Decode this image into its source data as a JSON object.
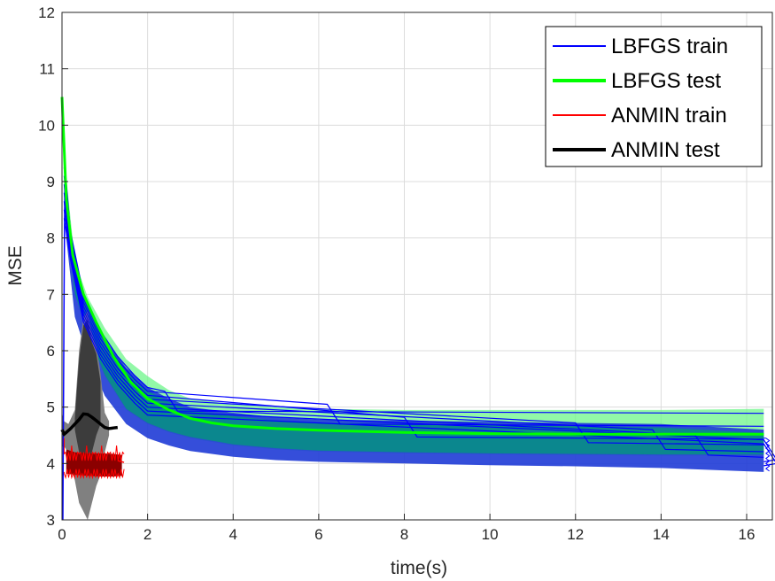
{
  "chart_data": {
    "type": "line",
    "title": "",
    "xlabel": "time(s)",
    "ylabel": "MSE",
    "xlim": [
      0,
      16.6
    ],
    "ylim": [
      3,
      12
    ],
    "xticks": [
      0,
      2,
      4,
      6,
      8,
      10,
      12,
      14,
      16
    ],
    "yticks": [
      3,
      4,
      5,
      6,
      7,
      8,
      9,
      10,
      11,
      12
    ],
    "grid": true,
    "legend_position": "top-right",
    "legend": [
      {
        "label": "LBFGS train",
        "color": "#0000ff"
      },
      {
        "label": "LBFGS test",
        "color": "#00ff00"
      },
      {
        "label": "ANMIN train",
        "color": "#ff0000"
      },
      {
        "label": "ANMIN test",
        "color": "#000000"
      }
    ],
    "series": [
      {
        "name": "LBFGS test (mean)",
        "color": "#00ff00",
        "x": [
          0,
          0.1,
          0.25,
          0.5,
          0.8,
          1.2,
          1.6,
          2.0,
          2.5,
          3.0,
          3.5,
          4.0,
          5.0,
          6.0,
          8.0,
          10.0,
          12.0,
          14.0,
          16.4
        ],
        "y": [
          10.5,
          8.7,
          7.7,
          7.0,
          6.5,
          5.9,
          5.45,
          5.15,
          4.95,
          4.8,
          4.72,
          4.67,
          4.62,
          4.59,
          4.55,
          4.53,
          4.52,
          4.52,
          4.52
        ]
      },
      {
        "name": "LBFGS test (band)",
        "color": "#66ee88",
        "x": [
          0.1,
          0.3,
          0.6,
          1.0,
          1.5,
          2.0,
          2.5,
          3.0,
          4.0,
          5.0,
          6.0,
          8.0,
          10.0,
          12.0,
          14.0,
          16.4
        ],
        "upper": [
          9.1,
          7.6,
          6.95,
          6.4,
          5.85,
          5.55,
          5.3,
          5.15,
          5.05,
          5.0,
          4.97,
          4.95,
          4.95,
          4.95,
          4.95,
          4.97
        ],
        "lower": [
          8.3,
          7.0,
          6.3,
          5.55,
          4.95,
          4.7,
          4.55,
          4.45,
          4.32,
          4.25,
          4.21,
          4.18,
          4.16,
          4.15,
          4.14,
          4.14
        ]
      },
      {
        "name": "LBFGS train (envelope)",
        "color": "#0000ff",
        "x": [
          0.1,
          0.3,
          0.6,
          1.0,
          1.5,
          2.0,
          2.5,
          3.0,
          4.0,
          5.0,
          6.0,
          8.0,
          10.0,
          12.0,
          14.0,
          16.4
        ],
        "upper": [
          8.8,
          7.4,
          6.8,
          6.2,
          5.7,
          5.35,
          5.15,
          5.0,
          4.9,
          4.82,
          4.78,
          4.76,
          4.74,
          4.72,
          4.7,
          4.6
        ],
        "lower": [
          8.0,
          6.6,
          5.9,
          5.2,
          4.7,
          4.45,
          4.32,
          4.22,
          4.12,
          4.06,
          4.03,
          4.0,
          3.97,
          3.95,
          3.92,
          3.85
        ]
      },
      {
        "name": "ANMIN test (mean)",
        "color": "#000000",
        "x": [
          0,
          0.05,
          0.1,
          0.2,
          0.3,
          0.4,
          0.5,
          0.6,
          0.7,
          0.8,
          0.9,
          1.0,
          1.1,
          1.2,
          1.3
        ],
        "y": [
          4.6,
          4.52,
          4.55,
          4.62,
          4.7,
          4.78,
          4.88,
          4.87,
          4.82,
          4.76,
          4.7,
          4.64,
          4.62,
          4.63,
          4.64
        ]
      },
      {
        "name": "ANMIN test (band)",
        "color": "#808080",
        "x": [
          0,
          0.05,
          0.15,
          0.3,
          0.4,
          0.5,
          0.6,
          0.7,
          0.8,
          0.9,
          1.0,
          1.1
        ],
        "upper": [
          4.9,
          4.75,
          4.7,
          4.95,
          6.0,
          6.6,
          6.7,
          6.3,
          6.1,
          5.6,
          4.9,
          4.75
        ],
        "lower": [
          4.3,
          4.3,
          4.2,
          3.7,
          3.3,
          3.15,
          3.0,
          3.3,
          3.6,
          3.8,
          4.2,
          4.5
        ]
      },
      {
        "name": "ANMIN train (band)",
        "color": "#8b0000",
        "x": [
          0.1,
          0.3,
          0.6,
          0.9,
          1.2,
          1.4
        ],
        "upper": [
          4.25,
          4.2,
          4.18,
          4.18,
          4.17,
          4.15
        ],
        "lower": [
          3.82,
          3.8,
          3.78,
          3.77,
          3.77,
          3.78
        ]
      }
    ]
  }
}
